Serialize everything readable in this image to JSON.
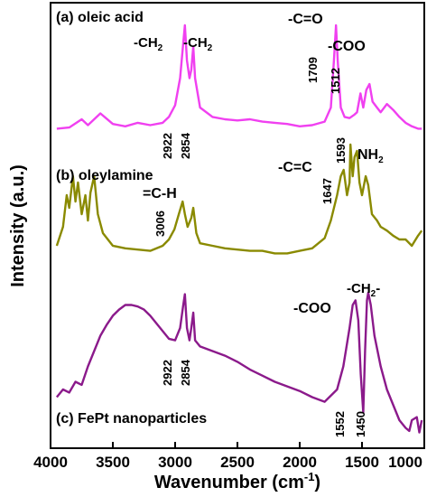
{
  "chart_data": {
    "type": "line",
    "xlabel": "Wavenumber (cm",
    "xlabel_sup": "-1",
    "xlabel_close": ")",
    "ylabel": "Intensity (a.u.)",
    "x_reversed": true,
    "xlim": [
      4000,
      1000
    ],
    "xticks": [
      4000,
      3500,
      3000,
      2500,
      2000,
      1500,
      1000
    ],
    "y_tick_labels": false,
    "grid": false,
    "series": [
      {
        "name": "(a) oleic acid",
        "color": "#f040f0",
        "points": [
          [
            3950,
            0.12
          ],
          [
            3850,
            0.13
          ],
          [
            3750,
            0.2
          ],
          [
            3700,
            0.15
          ],
          [
            3600,
            0.25
          ],
          [
            3500,
            0.16
          ],
          [
            3400,
            0.14
          ],
          [
            3300,
            0.17
          ],
          [
            3200,
            0.15
          ],
          [
            3100,
            0.17
          ],
          [
            3050,
            0.22
          ],
          [
            3000,
            0.32
          ],
          [
            2960,
            0.55
          ],
          [
            2935,
            0.85
          ],
          [
            2922,
            1.0
          ],
          [
            2905,
            0.7
          ],
          [
            2885,
            0.55
          ],
          [
            2870,
            0.62
          ],
          [
            2854,
            0.82
          ],
          [
            2840,
            0.55
          ],
          [
            2800,
            0.3
          ],
          [
            2700,
            0.22
          ],
          [
            2600,
            0.2
          ],
          [
            2500,
            0.19
          ],
          [
            2400,
            0.2
          ],
          [
            2300,
            0.18
          ],
          [
            2200,
            0.17
          ],
          [
            2100,
            0.16
          ],
          [
            2000,
            0.14
          ],
          [
            1900,
            0.15
          ],
          [
            1800,
            0.18
          ],
          [
            1750,
            0.3
          ],
          [
            1725,
            0.7
          ],
          [
            1709,
            1.0
          ],
          [
            1695,
            0.7
          ],
          [
            1670,
            0.3
          ],
          [
            1640,
            0.22
          ],
          [
            1600,
            0.21
          ],
          [
            1560,
            0.24
          ],
          [
            1540,
            0.26
          ],
          [
            1512,
            0.42
          ],
          [
            1490,
            0.3
          ],
          [
            1465,
            0.45
          ],
          [
            1440,
            0.5
          ],
          [
            1415,
            0.35
          ],
          [
            1380,
            0.3
          ],
          [
            1350,
            0.26
          ],
          [
            1300,
            0.33
          ],
          [
            1250,
            0.28
          ],
          [
            1200,
            0.22
          ],
          [
            1150,
            0.17
          ],
          [
            1100,
            0.14
          ],
          [
            1050,
            0.12
          ],
          [
            1020,
            0.12
          ]
        ]
      },
      {
        "name": "(b) oleylamine",
        "color": "#8a8a00",
        "points": [
          [
            3950,
            0.2
          ],
          [
            3900,
            0.35
          ],
          [
            3870,
            0.6
          ],
          [
            3850,
            0.5
          ],
          [
            3820,
            0.75
          ],
          [
            3800,
            0.55
          ],
          [
            3780,
            0.7
          ],
          [
            3750,
            0.45
          ],
          [
            3720,
            0.6
          ],
          [
            3700,
            0.4
          ],
          [
            3680,
            0.62
          ],
          [
            3650,
            0.75
          ],
          [
            3620,
            0.45
          ],
          [
            3580,
            0.3
          ],
          [
            3500,
            0.2
          ],
          [
            3400,
            0.18
          ],
          [
            3300,
            0.17
          ],
          [
            3200,
            0.16
          ],
          [
            3100,
            0.2
          ],
          [
            3050,
            0.25
          ],
          [
            3006,
            0.33
          ],
          [
            2970,
            0.45
          ],
          [
            2940,
            0.55
          ],
          [
            2922,
            0.45
          ],
          [
            2900,
            0.35
          ],
          [
            2870,
            0.42
          ],
          [
            2854,
            0.5
          ],
          [
            2830,
            0.3
          ],
          [
            2800,
            0.22
          ],
          [
            2700,
            0.2
          ],
          [
            2600,
            0.18
          ],
          [
            2500,
            0.17
          ],
          [
            2400,
            0.16
          ],
          [
            2300,
            0.16
          ],
          [
            2200,
            0.14
          ],
          [
            2100,
            0.14
          ],
          [
            2000,
            0.16
          ],
          [
            1900,
            0.18
          ],
          [
            1850,
            0.22
          ],
          [
            1800,
            0.26
          ],
          [
            1750,
            0.4
          ],
          [
            1700,
            0.6
          ],
          [
            1670,
            0.75
          ],
          [
            1647,
            0.8
          ],
          [
            1620,
            0.6
          ],
          [
            1600,
            0.7
          ],
          [
            1593,
            1.0
          ],
          [
            1575,
            0.75
          ],
          [
            1560,
            0.9
          ],
          [
            1540,
            0.95
          ],
          [
            1520,
            0.7
          ],
          [
            1500,
            0.6
          ],
          [
            1470,
            0.75
          ],
          [
            1450,
            0.68
          ],
          [
            1420,
            0.45
          ],
          [
            1380,
            0.4
          ],
          [
            1350,
            0.35
          ],
          [
            1300,
            0.32
          ],
          [
            1250,
            0.28
          ],
          [
            1200,
            0.25
          ],
          [
            1150,
            0.25
          ],
          [
            1100,
            0.2
          ],
          [
            1050,
            0.28
          ],
          [
            1020,
            0.32
          ]
        ]
      },
      {
        "name": "(c) FePt nanoparticles",
        "color": "#8b1a8b",
        "points": [
          [
            3950,
            0.25
          ],
          [
            3900,
            0.3
          ],
          [
            3850,
            0.28
          ],
          [
            3800,
            0.35
          ],
          [
            3750,
            0.33
          ],
          [
            3700,
            0.45
          ],
          [
            3650,
            0.55
          ],
          [
            3600,
            0.65
          ],
          [
            3550,
            0.72
          ],
          [
            3500,
            0.78
          ],
          [
            3450,
            0.82
          ],
          [
            3400,
            0.85
          ],
          [
            3350,
            0.85
          ],
          [
            3300,
            0.84
          ],
          [
            3250,
            0.82
          ],
          [
            3200,
            0.78
          ],
          [
            3150,
            0.73
          ],
          [
            3100,
            0.68
          ],
          [
            3050,
            0.63
          ],
          [
            3000,
            0.62
          ],
          [
            2960,
            0.7
          ],
          [
            2935,
            0.85
          ],
          [
            2922,
            0.92
          ],
          [
            2905,
            0.7
          ],
          [
            2885,
            0.62
          ],
          [
            2870,
            0.7
          ],
          [
            2854,
            0.8
          ],
          [
            2840,
            0.62
          ],
          [
            2800,
            0.58
          ],
          [
            2700,
            0.55
          ],
          [
            2600,
            0.52
          ],
          [
            2500,
            0.48
          ],
          [
            2400,
            0.43
          ],
          [
            2300,
            0.39
          ],
          [
            2200,
            0.35
          ],
          [
            2100,
            0.32
          ],
          [
            2000,
            0.29
          ],
          [
            1900,
            0.25
          ],
          [
            1800,
            0.22
          ],
          [
            1700,
            0.3
          ],
          [
            1650,
            0.45
          ],
          [
            1600,
            0.7
          ],
          [
            1575,
            0.85
          ],
          [
            1552,
            0.88
          ],
          [
            1530,
            0.75
          ],
          [
            1510,
            0.4
          ],
          [
            1490,
            0.15
          ],
          [
            1475,
            0.55
          ],
          [
            1460,
            0.88
          ],
          [
            1450,
            0.93
          ],
          [
            1430,
            0.85
          ],
          [
            1400,
            0.65
          ],
          [
            1350,
            0.45
          ],
          [
            1300,
            0.3
          ],
          [
            1250,
            0.2
          ],
          [
            1200,
            0.1
          ],
          [
            1150,
            0.05
          ],
          [
            1120,
            0.03
          ],
          [
            1100,
            0.1
          ],
          [
            1060,
            0.12
          ],
          [
            1040,
            0.02
          ],
          [
            1020,
            0.1
          ]
        ]
      }
    ]
  },
  "annotations": {
    "ch2_left": "-CH",
    "ch2_left_sub": "2",
    "ch2_right": "-CH",
    "ch2_right_sub": "2",
    "c_o": "-C=O",
    "coo_a": "-COO",
    "n1709": "1709",
    "n1512": "1512",
    "n2922_a": "2922",
    "n2854_a": "2854",
    "eq_ch": "=C-H",
    "n3006": "3006",
    "c_c": "-C=C",
    "n1647": "1647",
    "n1593": "1593",
    "nh2": "NH",
    "nh2_sub": "2",
    "coo_c": "-COO",
    "ch2_c": "-CH",
    "ch2_c_sub": "2",
    "ch2_c_tail": "-",
    "n2922_c": "2922",
    "n2854_c": "2854",
    "n1552": "1552",
    "n1450": "1450"
  }
}
